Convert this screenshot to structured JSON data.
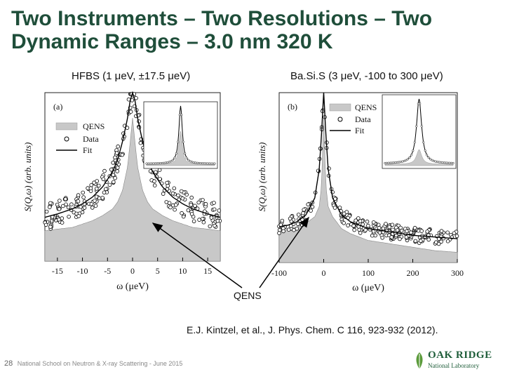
{
  "slide": {
    "title": "Two Instruments – Two Resolutions – Two Dynamic Ranges – 3.0 nm 320 K",
    "page_number": "28",
    "footer": "National School on Neutron & X-ray Scattering -  June 2015",
    "citation": "E.J. Kintzel, et al., J. Phys. Chem. C 116, 923-932 (2012).",
    "annotation": "QENS",
    "logo": {
      "main": "OAK RIDGE",
      "sub": "National Laboratory"
    }
  },
  "colors": {
    "title": "#1f4e3a",
    "qens_fill": "#c8c8c8",
    "fit_line": "#000000"
  },
  "chart_data": [
    {
      "type": "area",
      "panel_caption": "HFBS (1 μeV, ±17.5 μeV)",
      "panel_label": "(a)",
      "xlabel": "ω (μeV)",
      "ylabel": "S(Q,ω) (arb. units)",
      "xlim": [
        -17.5,
        17.5
      ],
      "x_ticks": [
        -15,
        -10,
        -5,
        0,
        5,
        10,
        15
      ],
      "x_tick_labels": [
        "-15",
        "-10",
        "-5",
        "0",
        "5",
        "10",
        "15"
      ],
      "legend": {
        "position": "top-left",
        "entries": [
          "QENS",
          "Data",
          "Fit"
        ]
      },
      "series": [
        {
          "name": "QENS",
          "x": [
            -17.5,
            -15,
            -12,
            -10,
            -8,
            -6,
            -4,
            -3,
            -2,
            -1,
            -0.5,
            0,
            0.5,
            1,
            2,
            3,
            4,
            6,
            8,
            10,
            12,
            15,
            17.5
          ],
          "values": [
            0.18,
            0.19,
            0.2,
            0.22,
            0.24,
            0.27,
            0.31,
            0.35,
            0.42,
            0.56,
            0.7,
            0.85,
            0.7,
            0.56,
            0.42,
            0.35,
            0.31,
            0.27,
            0.24,
            0.22,
            0.2,
            0.19,
            0.18
          ]
        },
        {
          "name": "Fit",
          "x": [
            -17.5,
            -15,
            -12,
            -10,
            -8,
            -6,
            -4,
            -3,
            -2,
            -1,
            -0.5,
            0,
            0.5,
            1,
            2,
            3,
            4,
            6,
            8,
            10,
            12,
            15,
            17.5
          ],
          "values": [
            0.26,
            0.28,
            0.31,
            0.34,
            0.38,
            0.44,
            0.53,
            0.6,
            0.71,
            0.85,
            0.95,
            1.0,
            0.95,
            0.85,
            0.71,
            0.6,
            0.53,
            0.44,
            0.38,
            0.34,
            0.31,
            0.28,
            0.26
          ]
        }
      ],
      "inset": "full peak (Data, Fit, QENS)"
    },
    {
      "type": "area",
      "panel_caption": "Ba.Si.S (3 μeV, -100 to 300 μeV)",
      "panel_label": "(b)",
      "xlabel": "ω (μeV)",
      "ylabel": "S(Q,ω) (arb. units)",
      "xlim": [
        -100,
        300
      ],
      "x_ticks": [
        -100,
        0,
        100,
        200,
        300
      ],
      "x_tick_labels": [
        "-100",
        "0",
        "100",
        "200",
        "300"
      ],
      "legend": {
        "position": "top-right",
        "entries": [
          "QENS",
          "Data",
          "Fit"
        ]
      },
      "series": [
        {
          "name": "QENS",
          "x": [
            -100,
            -80,
            -60,
            -40,
            -20,
            -10,
            -5,
            0,
            5,
            10,
            20,
            40,
            60,
            80,
            100,
            150,
            200,
            250,
            300
          ],
          "values": [
            0.2,
            0.2,
            0.21,
            0.23,
            0.27,
            0.33,
            0.45,
            0.85,
            0.45,
            0.33,
            0.27,
            0.2,
            0.17,
            0.15,
            0.13,
            0.11,
            0.09,
            0.07,
            0.06
          ]
        },
        {
          "name": "Fit",
          "x": [
            -100,
            -80,
            -60,
            -40,
            -20,
            -10,
            -5,
            0,
            5,
            10,
            20,
            40,
            60,
            80,
            100,
            150,
            200,
            250,
            300
          ],
          "values": [
            0.21,
            0.22,
            0.24,
            0.28,
            0.38,
            0.55,
            0.75,
            1.0,
            0.75,
            0.55,
            0.38,
            0.28,
            0.24,
            0.22,
            0.2,
            0.18,
            0.16,
            0.15,
            0.14
          ]
        }
      ],
      "inset": "full peak (Data, Fit, QENS)"
    }
  ]
}
